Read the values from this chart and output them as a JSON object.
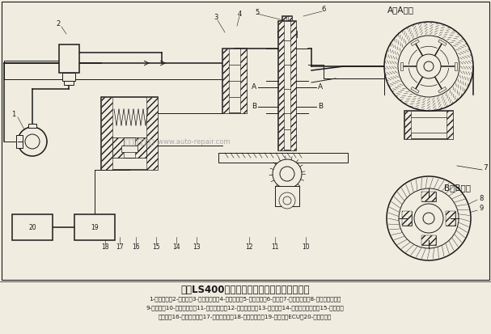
{
  "title": "凌志LS400轿车电控液压助力转向系统示意图",
  "top_label": "A－A截面",
  "bottom_label": "B－B截面",
  "caption_lines": [
    "1-转向油泵；2-储油罐；3-转向器壳体；4-转阀阀体；5-转阀阀芯；6-扭杆；7-转向动力缸；8-液压反力活塞；",
    "9-控制杆；10-液压反力腔；11-转向器齿轮；12-转向器齿条；13-节流孔；14-液流分配阀柱塞；15-液流分配",
    "阀弹簧；16-电磁阀线圈；17-电磁阀滑阀；18-电磁阀弹簧；19-动力转向ECU；20-车速传感器"
  ],
  "bg_color": "#f0ece0",
  "line_color": "#1a1a1a",
  "text_color": "#1a1a1a",
  "watermark": "汽车维修技术网  www.auto-repair.com",
  "figsize": [
    6.07,
    4.13
  ],
  "dpi": 100
}
